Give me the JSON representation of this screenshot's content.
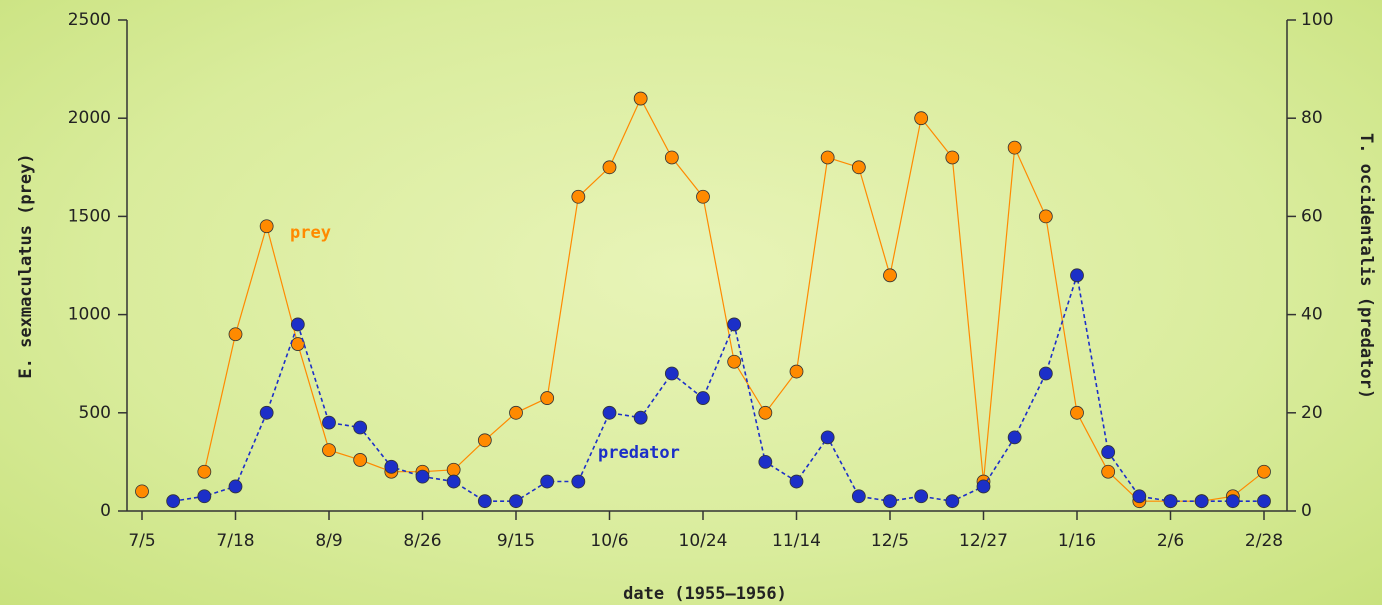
{
  "chart_data": {
    "type": "line",
    "xlabel": "date (1955–1956)",
    "ylabel": "E. sexmaculatus (prey)",
    "y2label": "T. occidentalis (predator)",
    "categories": [
      "7/5",
      null,
      null,
      "7/18",
      null,
      null,
      "8/9",
      null,
      null,
      "8/26",
      null,
      null,
      "9/15",
      null,
      null,
      "10/6",
      null,
      null,
      "10/24",
      null,
      null,
      "11/14",
      null,
      null,
      "12/5",
      null,
      null,
      "12/27",
      null,
      null,
      "1/16",
      null,
      null,
      "2/6",
      null,
      null,
      "2/28"
    ],
    "series": [
      {
        "name": "prey",
        "color": "#ff8a00",
        "line_style": "solid",
        "values": [
          100,
          null,
          200,
          900,
          1450,
          850,
          310,
          260,
          200,
          200,
          210,
          360,
          500,
          575,
          1600,
          1750,
          2100,
          1800,
          1600,
          760,
          500,
          710,
          1800,
          1750,
          1200,
          2000,
          1800,
          150,
          1850,
          1500,
          500,
          200,
          50,
          50,
          50,
          75,
          200
        ]
      },
      {
        "name": "predator",
        "color": "#1c2fc8",
        "line_style": "dashed",
        "axis": "y2",
        "values": [
          null,
          2,
          3,
          5,
          20,
          38,
          18,
          17,
          9,
          7,
          6,
          2,
          2,
          6,
          6,
          20,
          19,
          28,
          23,
          38,
          10,
          6,
          15,
          3,
          2,
          3,
          2,
          5,
          15,
          28,
          48,
          12,
          3,
          2,
          2,
          2,
          2
        ]
      }
    ],
    "ylim": [
      0,
      2500
    ],
    "yticks": [
      0,
      500,
      1000,
      1500,
      2000,
      2500
    ],
    "y2lim": [
      0,
      100
    ],
    "y2ticks": [
      0,
      20,
      40,
      60,
      80,
      100
    ],
    "grid": false
  }
}
